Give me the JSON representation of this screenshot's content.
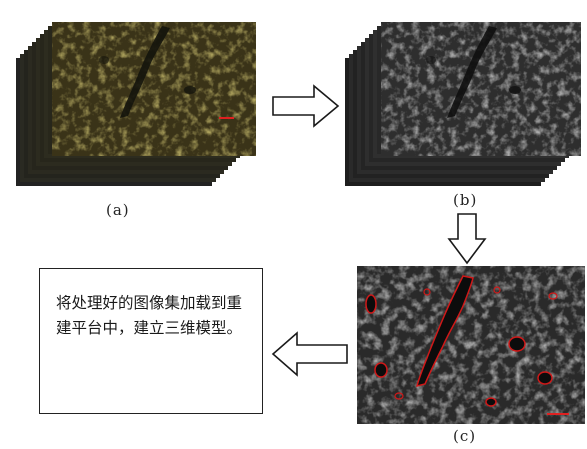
{
  "captions": {
    "a": "(a)",
    "b": "(b)",
    "c": "(c)"
  },
  "description_box": {
    "text": "将处理好的图像集加载到重建平台中，建立三维模型。"
  },
  "colors": {
    "panel_a_base": "#3a3318",
    "panel_a_texture": "#c9b33a",
    "panel_b_base": "#2e2e2e",
    "panel_b_texture": "#bdbdbd",
    "panel_c_base": "#2a2a2a",
    "panel_c_outline": "#d01818",
    "scale_bar": "#e02020",
    "arrow_stroke": "#1a1a1a"
  },
  "icons": {
    "arrow_a_to_b": "right-hollow-arrow",
    "arrow_b_to_c": "down-hollow-arrow",
    "arrow_c_to_box": "left-hollow-arrow"
  }
}
